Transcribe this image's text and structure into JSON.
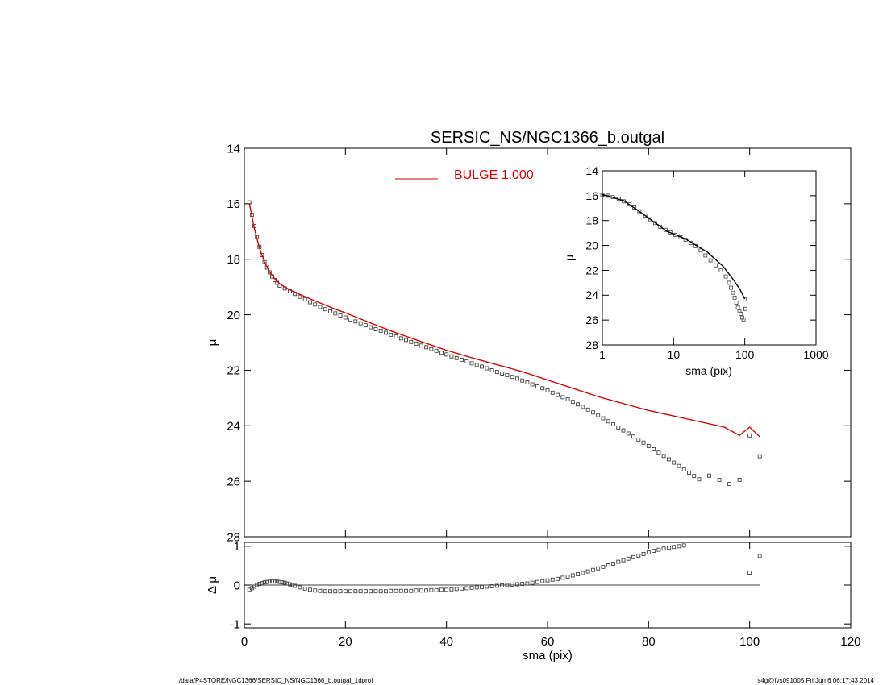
{
  "chart_data": [
    {
      "panel": "main",
      "type": "scatter",
      "title": "SERSIC_NS/NGC1366_b.outgal",
      "xlabel": "",
      "ylabel": "μ",
      "xlim": [
        0,
        120
      ],
      "ylim": [
        28,
        14
      ],
      "x_ticks": [
        0,
        20,
        40,
        60,
        80,
        100,
        120
      ],
      "y_ticks": [
        14,
        16,
        18,
        20,
        22,
        24,
        26,
        28
      ],
      "x_tick_labels": [],
      "y_tick_labels": [
        "14",
        "16",
        "18",
        "20",
        "22",
        "24",
        "26",
        "28"
      ],
      "legend": {
        "label": "BULGE  1.000",
        "color": "#dd0000",
        "position": "top-center"
      },
      "series": [
        {
          "kind": "data-squares",
          "color": "#444444",
          "x": [
            1.0,
            1.5,
            2.0,
            2.5,
            3.0,
            3.5,
            4.0,
            4.5,
            5.0,
            5.5,
            6.0,
            6.5,
            7.0,
            8.0,
            9.0,
            10.0,
            11.0,
            12.0,
            13.0,
            14.0,
            15.0,
            16.0,
            17.0,
            18.0,
            19.0,
            20.0,
            21.0,
            22.0,
            23.0,
            24.0,
            25.0,
            26.0,
            27.0,
            28.0,
            29.0,
            30.0,
            31.0,
            32.0,
            33.0,
            34.0,
            35.0,
            36.0,
            37.0,
            38.0,
            39.0,
            40.0,
            41.0,
            42.0,
            43.0,
            44.0,
            45.0,
            46.0,
            47.0,
            48.0,
            49.0,
            50.0,
            51.0,
            52.0,
            53.0,
            54.0,
            55.0,
            56.0,
            57.0,
            58.0,
            59.0,
            60.0,
            61.0,
            62.0,
            63.0,
            64.0,
            65.0,
            66.0,
            67.0,
            68.0,
            69.0,
            70.0,
            71.0,
            72.0,
            73.0,
            74.0,
            75.0,
            76.0,
            77.0,
            78.0,
            79.0,
            80.0,
            81.0,
            82.0,
            83.0,
            84.0,
            85.0,
            86.0,
            87.0,
            88.0,
            89.0,
            90.0,
            92.0,
            94.0,
            96.0,
            98.0,
            100.0,
            102.0
          ],
          "y": [
            15.95,
            16.4,
            16.8,
            17.2,
            17.55,
            17.85,
            18.1,
            18.3,
            18.47,
            18.62,
            18.75,
            18.85,
            18.95,
            19.05,
            19.15,
            19.25,
            19.35,
            19.45,
            19.55,
            19.63,
            19.72,
            19.8,
            19.88,
            19.95,
            20.03,
            20.1,
            20.17,
            20.24,
            20.31,
            20.38,
            20.45,
            20.52,
            20.58,
            20.65,
            20.72,
            20.78,
            20.85,
            20.91,
            20.98,
            21.04,
            21.11,
            21.17,
            21.24,
            21.3,
            21.37,
            21.43,
            21.5,
            21.56,
            21.62,
            21.68,
            21.75,
            21.81,
            21.87,
            21.93,
            22.0,
            22.06,
            22.12,
            22.18,
            22.24,
            22.3,
            22.37,
            22.44,
            22.51,
            22.58,
            22.65,
            22.73,
            22.81,
            22.89,
            22.97,
            23.05,
            23.14,
            23.23,
            23.32,
            23.42,
            23.52,
            23.62,
            23.73,
            23.84,
            23.95,
            24.06,
            24.17,
            24.28,
            24.39,
            24.5,
            24.61,
            24.73,
            24.85,
            24.97,
            25.09,
            25.21,
            25.33,
            25.45,
            25.57,
            25.69,
            25.81,
            25.93,
            25.8,
            25.95,
            26.1,
            25.95,
            24.35,
            25.1
          ]
        },
        {
          "kind": "model-line",
          "name": "BULGE  1.000",
          "color": "#dd0000",
          "x": [
            1,
            2,
            3,
            4,
            5,
            6,
            7,
            8,
            9,
            10,
            12,
            14,
            16,
            18,
            20,
            25,
            30,
            35,
            40,
            45,
            50,
            55,
            60,
            65,
            70,
            75,
            80,
            85,
            90,
            95,
            98,
            100,
            102
          ],
          "y": [
            16.0,
            16.9,
            17.6,
            18.1,
            18.45,
            18.7,
            18.88,
            19.0,
            19.1,
            19.18,
            19.35,
            19.5,
            19.65,
            19.8,
            19.93,
            20.3,
            20.65,
            20.97,
            21.28,
            21.55,
            21.8,
            22.05,
            22.35,
            22.65,
            22.95,
            23.2,
            23.45,
            23.65,
            23.85,
            24.05,
            24.35,
            24.05,
            24.4
          ]
        }
      ]
    },
    {
      "panel": "residual",
      "type": "scatter",
      "xlabel": "sma (pix)",
      "ylabel": "Δ μ",
      "xlim": [
        0,
        120
      ],
      "ylim": [
        -1.1,
        1.1
      ],
      "x_ticks": [
        0,
        20,
        40,
        60,
        80,
        100,
        120
      ],
      "y_ticks": [
        -1,
        0,
        1
      ],
      "x_tick_labels": [
        "0",
        "20",
        "40",
        "60",
        "80",
        "100",
        "120"
      ],
      "y_tick_labels": [
        "-1",
        "0",
        "1"
      ],
      "zero_line_xrange": [
        0,
        102
      ],
      "series": [
        {
          "kind": "residual-squares",
          "color": "#444444",
          "x": [
            1.0,
            1.5,
            2.0,
            2.5,
            3.0,
            3.5,
            4.0,
            4.5,
            5.0,
            5.5,
            6.0,
            6.5,
            7.0,
            7.5,
            8.0,
            8.5,
            9.0,
            9.5,
            10.0,
            11.0,
            12.0,
            13.0,
            14.0,
            15.0,
            16.0,
            17.0,
            18.0,
            19.0,
            20.0,
            21.0,
            22.0,
            23.0,
            24.0,
            25.0,
            26.0,
            27.0,
            28.0,
            29.0,
            30.0,
            31.0,
            32.0,
            33.0,
            34.0,
            35.0,
            36.0,
            37.0,
            38.0,
            39.0,
            40.0,
            41.0,
            42.0,
            43.0,
            44.0,
            45.0,
            46.0,
            47.0,
            48.0,
            49.0,
            50.0,
            51.0,
            52.0,
            53.0,
            54.0,
            55.0,
            56.0,
            57.0,
            58.0,
            59.0,
            60.0,
            61.0,
            62.0,
            63.0,
            64.0,
            65.0,
            66.0,
            67.0,
            68.0,
            69.0,
            70.0,
            71.0,
            72.0,
            73.0,
            74.0,
            75.0,
            76.0,
            77.0,
            78.0,
            79.0,
            80.0,
            81.0,
            82.0,
            83.0,
            84.0,
            85.0,
            86.0,
            87.0,
            100.0,
            102.0
          ],
          "y": [
            -0.12,
            -0.08,
            -0.04,
            0.0,
            0.03,
            0.05,
            0.07,
            0.08,
            0.09,
            0.09,
            0.09,
            0.09,
            0.08,
            0.07,
            0.06,
            0.04,
            0.02,
            0.0,
            -0.02,
            -0.06,
            -0.09,
            -0.12,
            -0.14,
            -0.15,
            -0.16,
            -0.16,
            -0.16,
            -0.16,
            -0.16,
            -0.16,
            -0.16,
            -0.16,
            -0.16,
            -0.16,
            -0.16,
            -0.16,
            -0.16,
            -0.15,
            -0.15,
            -0.15,
            -0.15,
            -0.15,
            -0.14,
            -0.14,
            -0.14,
            -0.13,
            -0.13,
            -0.12,
            -0.12,
            -0.11,
            -0.1,
            -0.09,
            -0.08,
            -0.07,
            -0.06,
            -0.05,
            -0.04,
            -0.03,
            -0.02,
            -0.01,
            0.0,
            0.01,
            0.02,
            0.03,
            0.04,
            0.06,
            0.08,
            0.1,
            0.12,
            0.14,
            0.16,
            0.19,
            0.22,
            0.25,
            0.28,
            0.31,
            0.35,
            0.39,
            0.43,
            0.47,
            0.51,
            0.55,
            0.6,
            0.64,
            0.68,
            0.72,
            0.76,
            0.8,
            0.84,
            0.88,
            0.91,
            0.94,
            0.96,
            0.98,
            1.0,
            1.02,
            0.32,
            0.75
          ]
        }
      ]
    },
    {
      "panel": "inset",
      "type": "scatter",
      "xlabel": "sma (pix)",
      "ylabel": "μ",
      "x_scale": "log",
      "xlim": [
        1,
        1000
      ],
      "ylim": [
        28,
        14
      ],
      "x_ticks": [
        1,
        10,
        100,
        1000
      ],
      "y_ticks": [
        14,
        16,
        18,
        20,
        22,
        24,
        26,
        28
      ],
      "x_tick_labels": [
        "1",
        "10",
        "100",
        "1000"
      ],
      "y_tick_labels": [
        "14",
        "16",
        "18",
        "20",
        "22",
        "24",
        "26",
        "28"
      ],
      "series": [
        {
          "kind": "data-squares",
          "color": "#555555",
          "x": [
            1.0,
            1.2,
            1.4,
            1.7,
            2.0,
            2.4,
            2.8,
            3.3,
            4.0,
            4.7,
            5.5,
            6.5,
            7.7,
            9.0,
            10.6,
            12.5,
            14.7,
            17.3,
            20.4,
            24.0,
            28.0,
            33.0,
            39.0,
            46.0,
            54.0,
            60.0,
            64.0,
            68.0,
            72.0,
            76.0,
            80.0,
            84.0,
            88.0,
            92.0,
            96.0,
            100.0,
            102.0
          ],
          "y": [
            15.95,
            16.0,
            16.1,
            16.25,
            16.45,
            16.7,
            16.95,
            17.25,
            17.6,
            17.9,
            18.2,
            18.5,
            18.75,
            18.95,
            19.15,
            19.35,
            19.55,
            19.8,
            20.05,
            20.4,
            20.8,
            21.2,
            21.6,
            22.0,
            22.5,
            23.0,
            23.4,
            23.8,
            24.2,
            24.6,
            25.0,
            25.3,
            25.5,
            25.8,
            25.95,
            24.35,
            25.1
          ]
        },
        {
          "kind": "model-line",
          "color": "#000000",
          "x": [
            1,
            2,
            4,
            8,
            15,
            30,
            50,
            70,
            85,
            100
          ],
          "y": [
            15.9,
            16.4,
            17.6,
            18.85,
            19.5,
            20.55,
            21.7,
            22.8,
            23.5,
            24.3
          ]
        }
      ]
    }
  ],
  "footer": {
    "left": "/data/P4STORE/NGC1366/SERSIC_NS/NGC1366_b.outgal_1dprof",
    "right": "s4g@fys091005  Fri Jun  6 06:17:43 2014"
  }
}
